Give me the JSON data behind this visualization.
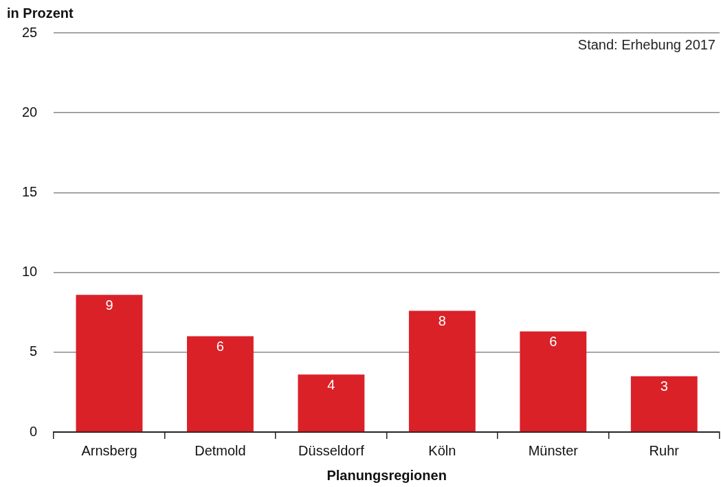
{
  "chart_data": {
    "type": "bar",
    "ylabel": "in Prozent",
    "xlabel": "Planungsregionen",
    "categories": [
      "Arnsberg",
      "Detmold",
      "Düsseldorf",
      "Köln",
      "Münster",
      "Ruhr"
    ],
    "values": [
      8.6,
      6.0,
      3.6,
      7.6,
      6.3,
      3.5
    ],
    "value_labels": [
      "9",
      "6",
      "4",
      "8",
      "6",
      "3"
    ],
    "color": "#da2128",
    "ylim": [
      0,
      25
    ],
    "yticks": [
      0,
      5,
      10,
      15,
      20,
      25
    ],
    "grid": "y",
    "annotations": [
      "Stand: Erhebung 2017"
    ]
  }
}
